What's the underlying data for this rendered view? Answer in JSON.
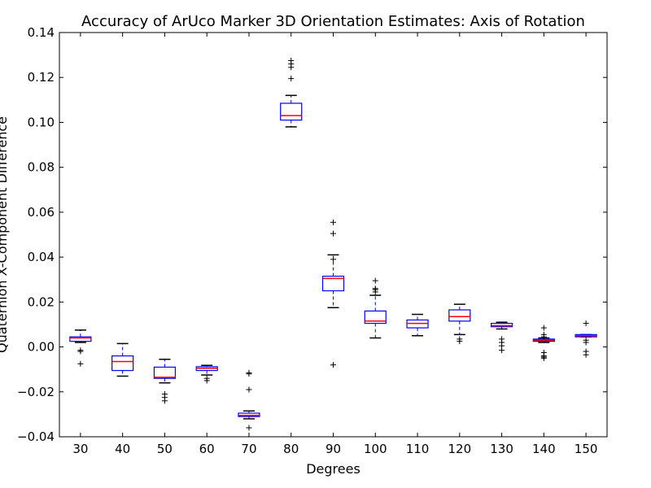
{
  "chart_data": {
    "type": "box",
    "title": "Accuracy of ArUco Marker 3D Orientation Estimates: Axis of Rotation",
    "xlabel": "Degrees",
    "ylabel": "Quaternion X-Component Difference",
    "ylim": [
      -0.04,
      0.14
    ],
    "yticks": [
      "0.14",
      "0.12",
      "0.10",
      "0.08",
      "0.06",
      "0.04",
      "0.02",
      "0.00",
      "−0.02",
      "−0.04"
    ],
    "ytick_values": [
      0.14,
      0.12,
      0.1,
      0.08,
      0.06,
      0.04,
      0.02,
      0.0,
      -0.02,
      -0.04
    ],
    "categories": [
      "30",
      "40",
      "50",
      "60",
      "70",
      "80",
      "90",
      "100",
      "110",
      "120",
      "130",
      "140",
      "150"
    ],
    "grid": false,
    "colors": {
      "box": "#0000ff",
      "median": "#ff0000",
      "whisker": "#000000",
      "flier": "#000000",
      "axes": "#000000"
    },
    "boxes": [
      {
        "category": "30",
        "whislo": 0.002,
        "q1": 0.0025,
        "med": 0.004,
        "q3": 0.0045,
        "whishi": 0.0075,
        "fliers": [
          -0.0015,
          -0.002,
          -0.0075
        ]
      },
      {
        "category": "40",
        "whislo": -0.013,
        "q1": -0.0105,
        "med": -0.0065,
        "q3": -0.004,
        "whishi": 0.0015,
        "fliers": []
      },
      {
        "category": "50",
        "whislo": -0.016,
        "q1": -0.014,
        "med": -0.0135,
        "q3": -0.009,
        "whishi": -0.0055,
        "fliers": [
          -0.021,
          -0.0225,
          -0.024
        ]
      },
      {
        "category": "60",
        "whislo": -0.0125,
        "q1": -0.0105,
        "med": -0.0095,
        "q3": -0.0088,
        "whishi": -0.0082,
        "fliers": [
          -0.014,
          -0.015
        ]
      },
      {
        "category": "70",
        "whislo": -0.032,
        "q1": -0.031,
        "med": -0.0305,
        "q3": -0.0295,
        "whishi": -0.0285,
        "fliers": [
          -0.0115,
          -0.012,
          -0.019,
          -0.036
        ]
      },
      {
        "category": "80",
        "whislo": 0.098,
        "q1": 0.101,
        "med": 0.103,
        "q3": 0.1085,
        "whishi": 0.112,
        "fliers": [
          0.1195,
          0.1245,
          0.126,
          0.1275
        ]
      },
      {
        "category": "90",
        "whislo": 0.0175,
        "q1": 0.025,
        "med": 0.0305,
        "q3": 0.0315,
        "whishi": 0.041,
        "fliers": [
          0.039,
          0.0505,
          0.0555,
          -0.008
        ]
      },
      {
        "category": "100",
        "whislo": 0.004,
        "q1": 0.0105,
        "med": 0.0115,
        "q3": 0.016,
        "whishi": 0.023,
        "fliers": [
          0.0245,
          0.0255,
          0.026,
          0.0295
        ]
      },
      {
        "category": "110",
        "whislo": 0.005,
        "q1": 0.0085,
        "med": 0.0105,
        "q3": 0.012,
        "whishi": 0.0145,
        "fliers": []
      },
      {
        "category": "120",
        "whislo": 0.0055,
        "q1": 0.0115,
        "med": 0.0135,
        "q3": 0.0165,
        "whishi": 0.019,
        "fliers": [
          0.0035,
          0.0025
        ]
      },
      {
        "category": "130",
        "whislo": 0.008,
        "q1": 0.009,
        "med": 0.0095,
        "q3": 0.0105,
        "whishi": 0.011,
        "fliers": [
          0.0035,
          0.002,
          0.0005,
          -0.0015
        ]
      },
      {
        "category": "140",
        "whislo": 0.002,
        "q1": 0.0025,
        "med": 0.003,
        "q3": 0.0035,
        "whishi": 0.004,
        "fliers": [
          0.0085,
          0.0055,
          0.0045,
          -0.0025,
          -0.004,
          -0.0045,
          -0.005
        ]
      },
      {
        "category": "150",
        "whislo": 0.0045,
        "q1": 0.0045,
        "med": 0.005,
        "q3": 0.0055,
        "whishi": 0.0055,
        "fliers": [
          0.0105,
          0.003,
          0.002,
          -0.002,
          -0.0035
        ]
      }
    ]
  }
}
